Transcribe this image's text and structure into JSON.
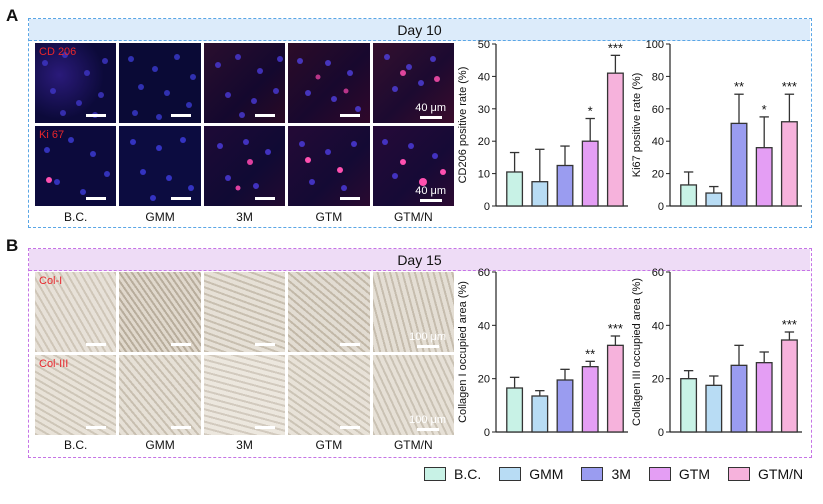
{
  "panels": {
    "a_letter": "A",
    "b_letter": "B",
    "a_title": "Day 10",
    "b_title": "Day 15"
  },
  "groups": [
    "B.C.",
    "GMM",
    "3M",
    "GTM",
    "GTM/N"
  ],
  "colors": {
    "panel_a_border": "#5aa6e6",
    "panel_a_header": "#dcebfa",
    "panel_b_border": "#c673e6",
    "panel_b_header": "#eedcf6",
    "bars": [
      "#c8f2e6",
      "#b8dcf4",
      "#9a9cf0",
      "#e49ef4",
      "#f6b2dc"
    ],
    "bar_edge": "#333333"
  },
  "micrographs": {
    "row1_label": "CD 206",
    "row2_label": "Ki 67",
    "row3_label": "Col-I",
    "row4_label": "Col-III",
    "fluor_scale": "40 μm",
    "bright_scale": "100 μm"
  },
  "chart_data": [
    {
      "type": "bar",
      "ylabel": "CD206 positive rate (%)",
      "ylim": [
        0,
        50
      ],
      "yticks": [
        "0",
        "10",
        "20",
        "30",
        "40",
        "50"
      ],
      "categories": [
        "B.C.",
        "GMM",
        "3M",
        "GTM",
        "GTM/N"
      ],
      "values": [
        10.5,
        7.5,
        12.5,
        20,
        41
      ],
      "errors": [
        6,
        10,
        6,
        7,
        5.5
      ],
      "significance": [
        "",
        "",
        "",
        "*",
        "***"
      ]
    },
    {
      "type": "bar",
      "ylabel": "Ki67 positive rate (%)",
      "ylim": [
        0,
        100
      ],
      "yticks": [
        "0",
        "20",
        "40",
        "60",
        "80",
        "100"
      ],
      "categories": [
        "B.C.",
        "GMM",
        "3M",
        "GTM",
        "GTM/N"
      ],
      "values": [
        13,
        8,
        51,
        36,
        52
      ],
      "errors": [
        8,
        4,
        18,
        19,
        17
      ],
      "significance": [
        "",
        "",
        "**",
        "*",
        "***"
      ]
    },
    {
      "type": "bar",
      "ylabel": "Collagen I occupied area (%)",
      "ylim": [
        0,
        60
      ],
      "yticks": [
        "0",
        "20",
        "40",
        "60"
      ],
      "categories": [
        "B.C.",
        "GMM",
        "3M",
        "GTM",
        "GTM/N"
      ],
      "values": [
        16.5,
        13.5,
        19.5,
        24.5,
        32.5
      ],
      "errors": [
        4,
        2,
        4,
        2,
        3.5
      ],
      "significance": [
        "",
        "",
        "",
        "**",
        "***"
      ]
    },
    {
      "type": "bar",
      "ylabel": "Collagen III occupied area (%)",
      "ylim": [
        0,
        60
      ],
      "yticks": [
        "0",
        "20",
        "40",
        "60"
      ],
      "categories": [
        "B.C.",
        "GMM",
        "3M",
        "GTM",
        "GTM/N"
      ],
      "values": [
        20,
        17.5,
        25,
        26,
        34.5
      ],
      "errors": [
        3,
        3.5,
        7.5,
        4,
        3
      ],
      "significance": [
        "",
        "",
        "",
        "",
        "***"
      ]
    }
  ],
  "legend": [
    "B.C.",
    "GMM",
    "3M",
    "GTM",
    "GTM/N"
  ]
}
